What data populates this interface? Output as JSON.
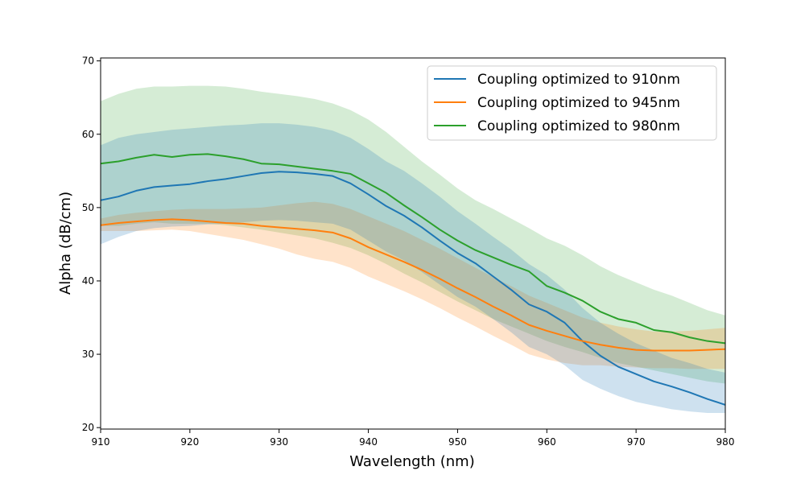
{
  "chart_data": {
    "type": "line",
    "xlabel": "Wavelength (nm)",
    "ylabel": "Alpha (dB/cm)",
    "xlim": [
      910,
      980
    ],
    "ylim": [
      19.8,
      70.4
    ],
    "x_ticks": [
      "910",
      "920",
      "930",
      "940",
      "950",
      "960",
      "970",
      "980"
    ],
    "y_ticks": [
      "20",
      "30",
      "40",
      "50",
      "60",
      "70"
    ],
    "legend_position": "top-right",
    "grid": false,
    "x": [
      910,
      912,
      914,
      916,
      918,
      920,
      922,
      924,
      926,
      928,
      930,
      932,
      934,
      936,
      938,
      940,
      942,
      944,
      946,
      948,
      950,
      952,
      954,
      956,
      958,
      960,
      962,
      964,
      966,
      968,
      970,
      972,
      974,
      976,
      978,
      980
    ],
    "series": [
      {
        "name": "Coupling optimized to 910nm",
        "color": "#1f77b4",
        "band_opacity": 0.22,
        "values": [
          51.0,
          51.5,
          52.3,
          52.8,
          53.0,
          53.2,
          53.6,
          53.9,
          54.3,
          54.7,
          54.9,
          54.8,
          54.6,
          54.3,
          53.3,
          51.8,
          50.2,
          48.9,
          47.3,
          45.5,
          43.8,
          42.4,
          40.6,
          38.8,
          36.8,
          35.8,
          34.3,
          31.8,
          29.8,
          28.3,
          27.3,
          26.3,
          25.6,
          24.8,
          23.9,
          23.1
        ],
        "upper": [
          58.5,
          59.5,
          60.0,
          60.3,
          60.6,
          60.8,
          61.0,
          61.2,
          61.3,
          61.5,
          61.5,
          61.3,
          61.0,
          60.5,
          59.5,
          58.0,
          56.3,
          55.0,
          53.3,
          51.5,
          49.5,
          47.8,
          46.0,
          44.3,
          42.3,
          40.8,
          38.8,
          36.3,
          34.3,
          32.8,
          31.5,
          30.5,
          29.5,
          28.8,
          28.0,
          27.5
        ],
        "lower": [
          45.0,
          46.0,
          46.8,
          47.2,
          47.4,
          47.5,
          47.7,
          47.8,
          48.0,
          48.2,
          48.3,
          48.2,
          48.0,
          47.8,
          47.0,
          45.5,
          44.0,
          42.8,
          41.2,
          39.5,
          37.8,
          36.5,
          34.8,
          33.0,
          31.0,
          30.0,
          28.5,
          26.5,
          25.3,
          24.3,
          23.5,
          23.0,
          22.5,
          22.2,
          22.0,
          22.0
        ]
      },
      {
        "name": "Coupling optimized to 945nm",
        "color": "#ff7f0e",
        "band_opacity": 0.22,
        "values": [
          47.6,
          47.9,
          48.1,
          48.3,
          48.4,
          48.3,
          48.1,
          47.9,
          47.8,
          47.5,
          47.3,
          47.1,
          46.9,
          46.6,
          45.8,
          44.6,
          43.6,
          42.6,
          41.5,
          40.3,
          39.0,
          37.8,
          36.5,
          35.3,
          34.0,
          33.2,
          32.5,
          31.8,
          31.3,
          30.9,
          30.6,
          30.5,
          30.5,
          30.5,
          30.6,
          30.7
        ],
        "upper": [
          48.5,
          49.0,
          49.3,
          49.5,
          49.7,
          49.8,
          49.8,
          49.8,
          49.9,
          50.0,
          50.3,
          50.6,
          50.8,
          50.5,
          49.8,
          48.8,
          47.8,
          46.8,
          45.6,
          44.4,
          43.1,
          41.8,
          40.5,
          39.3,
          38.0,
          37.0,
          36.0,
          35.0,
          34.3,
          33.8,
          33.4,
          33.1,
          33.1,
          33.2,
          33.4,
          33.6
        ],
        "lower": [
          46.8,
          46.8,
          46.8,
          46.9,
          47.0,
          46.8,
          46.4,
          46.0,
          45.6,
          45.0,
          44.4,
          43.6,
          43.0,
          42.6,
          41.8,
          40.6,
          39.6,
          38.6,
          37.5,
          36.3,
          35.0,
          33.8,
          32.5,
          31.3,
          30.0,
          29.3,
          28.8,
          28.5,
          28.5,
          28.3,
          28.2,
          28.1,
          28.1,
          28.0,
          28.0,
          28.0
        ]
      },
      {
        "name": "Coupling optimized to 980nm",
        "color": "#2ca02c",
        "band_opacity": 0.2,
        "values": [
          56.0,
          56.3,
          56.8,
          57.2,
          56.9,
          57.2,
          57.3,
          57.0,
          56.6,
          56.0,
          55.9,
          55.6,
          55.3,
          55.0,
          54.6,
          53.3,
          52.0,
          50.3,
          48.7,
          47.0,
          45.5,
          44.2,
          43.2,
          42.2,
          41.3,
          39.3,
          38.4,
          37.3,
          35.8,
          34.8,
          34.3,
          33.3,
          33.0,
          32.3,
          31.8,
          31.5
        ],
        "upper": [
          64.5,
          65.5,
          66.2,
          66.5,
          66.5,
          66.6,
          66.6,
          66.5,
          66.2,
          65.8,
          65.5,
          65.2,
          64.8,
          64.2,
          63.3,
          62.0,
          60.3,
          58.3,
          56.3,
          54.5,
          52.6,
          51.0,
          49.8,
          48.5,
          47.2,
          45.8,
          44.8,
          43.5,
          42.0,
          40.8,
          39.8,
          38.8,
          38.0,
          37.0,
          36.0,
          35.3
        ],
        "lower": [
          47.5,
          47.5,
          47.8,
          48.0,
          47.8,
          47.8,
          47.8,
          47.6,
          47.3,
          47.0,
          46.6,
          46.2,
          45.8,
          45.2,
          44.5,
          43.5,
          42.3,
          41.0,
          39.8,
          38.5,
          37.2,
          36.0,
          34.8,
          33.8,
          32.8,
          31.8,
          31.0,
          30.3,
          29.5,
          28.8,
          28.3,
          27.8,
          27.3,
          26.8,
          26.3,
          26.0
        ]
      }
    ]
  }
}
